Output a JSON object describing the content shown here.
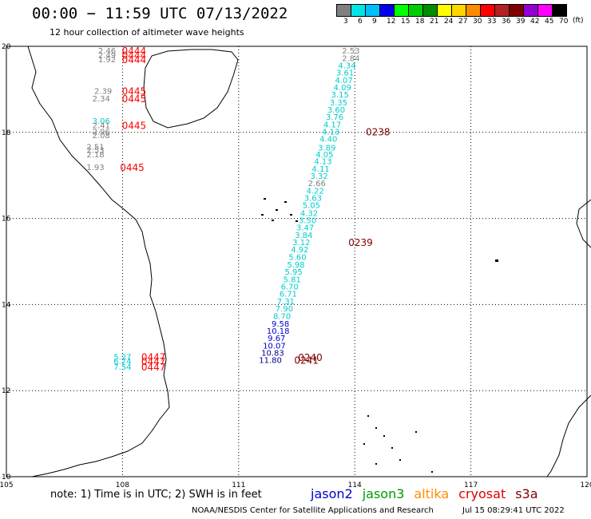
{
  "header": {
    "title": "00:00 − 11:59 UTC 07/13/2022",
    "subtitle": "12 hour collection of altimeter wave heights"
  },
  "legend": {
    "unit": "(ft)",
    "bins": [
      {
        "label": "3",
        "color": "#808080"
      },
      {
        "label": "6",
        "color": "#00e5e5"
      },
      {
        "label": "9",
        "color": "#00bfff"
      },
      {
        "label": "12",
        "color": "#0000ee"
      },
      {
        "label": "15",
        "color": "#00ff00"
      },
      {
        "label": "18",
        "color": "#00cd00"
      },
      {
        "label": "21",
        "color": "#008b00"
      },
      {
        "label": "24",
        "color": "#ffff00"
      },
      {
        "label": "27",
        "color": "#ffd700"
      },
      {
        "label": "30",
        "color": "#ff8c00"
      },
      {
        "label": "33",
        "color": "#ff0000"
      },
      {
        "label": "36",
        "color": "#b22222"
      },
      {
        "label": "39",
        "color": "#800000"
      },
      {
        "label": "42",
        "color": "#9400d3"
      },
      {
        "label": "45",
        "color": "#ff00ff"
      },
      {
        "label": "70",
        "color": "#000000"
      }
    ]
  },
  "axes": {
    "lon_ticks": [
      "105",
      "108",
      "111",
      "114",
      "117",
      "120"
    ],
    "lat_ticks": [
      "20",
      "18",
      "16",
      "14",
      "12",
      "10"
    ]
  },
  "colors": {
    "gray": "#808080",
    "cyan": "#00cccc",
    "blue": "#0000cc",
    "navy": "#00008b",
    "red": "#ff0000",
    "darkred": "#800000"
  },
  "observations": [
    {
      "text": "2.53",
      "lon": 113.9,
      "lat": 19.83,
      "color": "gray"
    },
    {
      "text": "2.84",
      "lon": 113.9,
      "lat": 19.66,
      "color": "gray"
    },
    {
      "text": "4.34",
      "lon": 113.8,
      "lat": 19.49,
      "color": "cyan"
    },
    {
      "text": "3.61",
      "lon": 113.75,
      "lat": 19.32,
      "color": "cyan"
    },
    {
      "text": "4.07",
      "lon": 113.72,
      "lat": 19.15,
      "color": "cyan"
    },
    {
      "text": "4.09",
      "lon": 113.68,
      "lat": 18.98,
      "color": "cyan"
    },
    {
      "text": "3.15",
      "lon": 113.62,
      "lat": 18.81,
      "color": "cyan"
    },
    {
      "text": "3.35",
      "lon": 113.58,
      "lat": 18.63,
      "color": "cyan"
    },
    {
      "text": "3.60",
      "lon": 113.52,
      "lat": 18.46,
      "color": "cyan"
    },
    {
      "text": "3.76",
      "lon": 113.48,
      "lat": 18.29,
      "color": "cyan"
    },
    {
      "text": "4.17",
      "lon": 113.42,
      "lat": 18.12,
      "color": "cyan"
    },
    {
      "text": "4.13",
      "lon": 113.38,
      "lat": 17.95,
      "color": "cyan"
    },
    {
      "text": "4.40",
      "lon": 113.32,
      "lat": 17.78,
      "color": "cyan"
    },
    {
      "text": "3.89",
      "lon": 113.28,
      "lat": 17.58,
      "color": "cyan"
    },
    {
      "text": "4.05",
      "lon": 113.22,
      "lat": 17.42,
      "color": "cyan"
    },
    {
      "text": "4.13",
      "lon": 113.18,
      "lat": 17.26,
      "color": "cyan"
    },
    {
      "text": "4.11",
      "lon": 113.12,
      "lat": 17.09,
      "color": "cyan"
    },
    {
      "text": "3.32",
      "lon": 113.08,
      "lat": 16.92,
      "color": "cyan"
    },
    {
      "text": "2.66",
      "lon": 113.02,
      "lat": 16.75,
      "color": "gray"
    },
    {
      "text": "4.22",
      "lon": 112.98,
      "lat": 16.58,
      "color": "cyan"
    },
    {
      "text": "3.63",
      "lon": 112.92,
      "lat": 16.41,
      "color": "cyan"
    },
    {
      "text": "5.05",
      "lon": 112.88,
      "lat": 16.24,
      "color": "cyan"
    },
    {
      "text": "4.32",
      "lon": 112.82,
      "lat": 16.06,
      "color": "cyan"
    },
    {
      "text": "3.50",
      "lon": 112.78,
      "lat": 15.89,
      "color": "cyan"
    },
    {
      "text": "3.47",
      "lon": 112.72,
      "lat": 15.72,
      "color": "cyan"
    },
    {
      "text": "3.84",
      "lon": 112.68,
      "lat": 15.55,
      "color": "cyan"
    },
    {
      "text": "3.12",
      "lon": 112.62,
      "lat": 15.38,
      "color": "cyan"
    },
    {
      "text": "4.92",
      "lon": 112.58,
      "lat": 15.21,
      "color": "cyan"
    },
    {
      "text": "5.60",
      "lon": 112.52,
      "lat": 15.04,
      "color": "cyan"
    },
    {
      "text": "5.98",
      "lon": 112.48,
      "lat": 14.86,
      "color": "cyan"
    },
    {
      "text": "5.95",
      "lon": 112.42,
      "lat": 14.69,
      "color": "cyan"
    },
    {
      "text": "5.81",
      "lon": 112.38,
      "lat": 14.52,
      "color": "cyan"
    },
    {
      "text": "6.70",
      "lon": 112.32,
      "lat": 14.35,
      "color": "cyan"
    },
    {
      "text": "6.71",
      "lon": 112.28,
      "lat": 14.18,
      "color": "cyan"
    },
    {
      "text": "7.31",
      "lon": 112.22,
      "lat": 14.01,
      "color": "cyan"
    },
    {
      "text": "7.90",
      "lon": 112.18,
      "lat": 13.84,
      "color": "cyan"
    },
    {
      "text": "8.70",
      "lon": 112.12,
      "lat": 13.66,
      "color": "cyan"
    },
    {
      "text": "9.58",
      "lon": 112.08,
      "lat": 13.49,
      "color": "blue"
    },
    {
      "text": "10.18",
      "lon": 112.02,
      "lat": 13.32,
      "color": "blue"
    },
    {
      "text": "9.67",
      "lon": 111.98,
      "lat": 13.15,
      "color": "blue"
    },
    {
      "text": "10.07",
      "lon": 111.92,
      "lat": 12.98,
      "color": "blue"
    },
    {
      "text": "10.83",
      "lon": 111.88,
      "lat": 12.81,
      "color": "navy"
    },
    {
      "text": "11.80",
      "lon": 111.82,
      "lat": 12.64,
      "color": "navy"
    },
    {
      "text": "2.46",
      "lon": 107.6,
      "lat": 19.83,
      "color": "gray"
    },
    {
      "text": "2.49",
      "lon": 107.6,
      "lat": 19.73,
      "color": "gray"
    },
    {
      "text": "1.92",
      "lon": 107.6,
      "lat": 19.63,
      "color": "gray"
    },
    {
      "text": "2.39",
      "lon": 107.5,
      "lat": 18.9,
      "color": "gray"
    },
    {
      "text": "2.34",
      "lon": 107.45,
      "lat": 18.72,
      "color": "gray"
    },
    {
      "text": "3.06",
      "lon": 107.45,
      "lat": 18.2,
      "color": "cyan"
    },
    {
      "text": "2.41",
      "lon": 107.45,
      "lat": 18.1,
      "color": "gray"
    },
    {
      "text": "2.96",
      "lon": 107.45,
      "lat": 17.95,
      "color": "gray"
    },
    {
      "text": "2.08",
      "lon": 107.45,
      "lat": 17.87,
      "color": "gray"
    },
    {
      "text": "2.51",
      "lon": 107.3,
      "lat": 17.6,
      "color": "gray"
    },
    {
      "text": "2.53",
      "lon": 107.3,
      "lat": 17.52,
      "color": "gray"
    },
    {
      "text": "2.18",
      "lon": 107.3,
      "lat": 17.42,
      "color": "gray"
    },
    {
      "text": "1.93",
      "lon": 107.3,
      "lat": 17.12,
      "color": "gray"
    },
    {
      "text": "5.27",
      "lon": 108.0,
      "lat": 12.72,
      "color": "cyan"
    },
    {
      "text": "6.74",
      "lon": 108.0,
      "lat": 12.62,
      "color": "cyan"
    },
    {
      "text": "7.54",
      "lon": 108.0,
      "lat": 12.49,
      "color": "cyan"
    }
  ],
  "pass_times": [
    {
      "text": "0444",
      "lon": 108.3,
      "lat": 19.83,
      "color": "red"
    },
    {
      "text": "0444",
      "lon": 108.3,
      "lat": 19.73,
      "color": "red"
    },
    {
      "text": "0444",
      "lon": 108.3,
      "lat": 19.63,
      "color": "red"
    },
    {
      "text": "0445",
      "lon": 108.3,
      "lat": 18.9,
      "color": "red"
    },
    {
      "text": "0445",
      "lon": 108.3,
      "lat": 18.72,
      "color": "red"
    },
    {
      "text": "0445",
      "lon": 108.3,
      "lat": 18.1,
      "color": "red"
    },
    {
      "text": "0445",
      "lon": 108.25,
      "lat": 17.12,
      "color": "red"
    },
    {
      "text": "0238",
      "lon": 114.6,
      "lat": 17.95,
      "color": "darkred"
    },
    {
      "text": "0239",
      "lon": 114.15,
      "lat": 15.38,
      "color": "darkred"
    },
    {
      "text": "0447",
      "lon": 108.8,
      "lat": 12.72,
      "color": "red"
    },
    {
      "text": "0447",
      "lon": 108.8,
      "lat": 12.62,
      "color": "red"
    },
    {
      "text": "0447",
      "lon": 108.8,
      "lat": 12.49,
      "color": "red"
    },
    {
      "text": "0240",
      "lon": 112.85,
      "lat": 12.71,
      "color": "darkred"
    },
    {
      "text": "0241",
      "lon": 112.75,
      "lat": 12.64,
      "color": "darkred"
    }
  ],
  "footer": {
    "note": "note:  1) Time is in UTC;  2) SWH is in feet",
    "missions": [
      {
        "label": "jason2",
        "color": "#0000cc"
      },
      {
        "label": "jason3",
        "color": "#009900"
      },
      {
        "label": "altika",
        "color": "#ff8c00"
      },
      {
        "label": "cryosat",
        "color": "#dd0000"
      },
      {
        "label": "s3a",
        "color": "#800000"
      }
    ],
    "credit": "NOAA/NESDIS Center for Satellite Applications and Research",
    "timestamp": "Jul 15 08:29:41 UTC 2022"
  }
}
